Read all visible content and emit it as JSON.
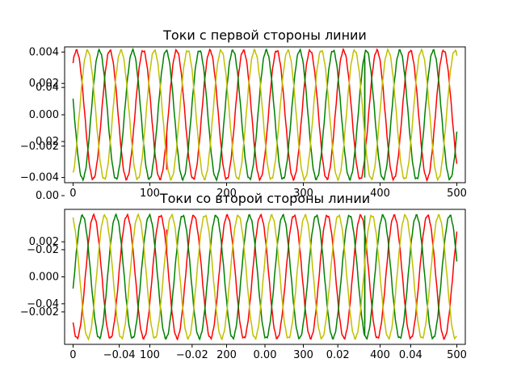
{
  "chart_data": [
    {
      "type": "line",
      "title": "Токи с первой стороны линии",
      "xlabel": "",
      "ylabel": "",
      "xlim": [
        -11,
        511
      ],
      "ylim": [
        -0.00433,
        0.00433
      ],
      "xticks": [
        0,
        100,
        200,
        300,
        400,
        500
      ],
      "xtick_labels": [
        "0",
        "100",
        "200",
        "300",
        "400",
        "500"
      ],
      "yticks": [
        0.004,
        0.002,
        0.0,
        -0.002,
        -0.004
      ],
      "ytick_labels": [
        "0.004",
        "0.002",
        "0.000",
        "−0.002",
        "−0.004"
      ],
      "grid": false,
      "period": 43.5,
      "fault_samples": [
        122,
        380
      ],
      "series": [
        {
          "color": "#ff0000",
          "amplitude": 0.0041,
          "phase_deg": 53.5,
          "fault_jumps": [
            {
              "at": 122,
              "to": -0.0035
            },
            {
              "at": 380,
              "to": 0.0034
            }
          ]
        },
        {
          "color": "#008000",
          "amplitude": 0.0041,
          "phase_deg": 166.5,
          "fault_jumps": [
            {
              "at": 122,
              "to": 0.0041
            },
            {
              "at": 380,
              "to": -0.004
            }
          ]
        },
        {
          "color": "#c0c000",
          "amplitude": 0.0041,
          "phase_deg": -66.5,
          "fault_jumps": []
        }
      ]
    },
    {
      "type": "line",
      "title": "Токи со второй стороны линии",
      "xlabel": "",
      "ylabel": "",
      "xlim": [
        -11,
        511
      ],
      "ylim": [
        -0.00385,
        0.00385
      ],
      "xticks": [
        0,
        100,
        200,
        300,
        400,
        500
      ],
      "xtick_labels": [
        "0",
        "100",
        "200",
        "300",
        "400",
        "500"
      ],
      "yticks": [
        0.002,
        0.0,
        -0.002
      ],
      "ytick_labels": [
        "0.002",
        "0.000",
        "−0.002"
      ],
      "grid": false,
      "period": 43.5,
      "fault_samples": [
        122,
        380
      ],
      "series": [
        {
          "color": "#ff0000",
          "amplitude": 0.0035,
          "phase_deg": -132,
          "fault_jumps": [
            {
              "at": 122,
              "to": 0.0027
            },
            {
              "at": 380,
              "to": -0.0027
            }
          ]
        },
        {
          "color": "#008000",
          "amplitude": 0.0035,
          "phase_deg": -12,
          "fault_jumps": [
            {
              "at": 122,
              "to": -0.0035
            },
            {
              "at": 380,
              "to": 0.0035
            }
          ]
        },
        {
          "color": "#c0c000",
          "amplitude": 0.0035,
          "phase_deg": 108,
          "fault_jumps": []
        }
      ]
    },
    {
      "type": "line",
      "title": "",
      "note": "Partially hidden background axes showing through the two subplots",
      "xlim": [
        -0.055,
        0.055
      ],
      "ylim": [
        -0.055,
        0.055
      ],
      "xticks": [
        -0.04,
        -0.02,
        0.0,
        0.02,
        0.04
      ],
      "xtick_labels": [
        "−0.04",
        "−0.02",
        "0.00",
        "0.02",
        "0.04"
      ],
      "yticks": [
        0.04,
        0.02,
        0.0,
        -0.02,
        -0.04
      ],
      "ytick_labels": [
        "0.04",
        "0.02",
        "0.00",
        "−0.02",
        "−0.04"
      ],
      "series": []
    }
  ]
}
